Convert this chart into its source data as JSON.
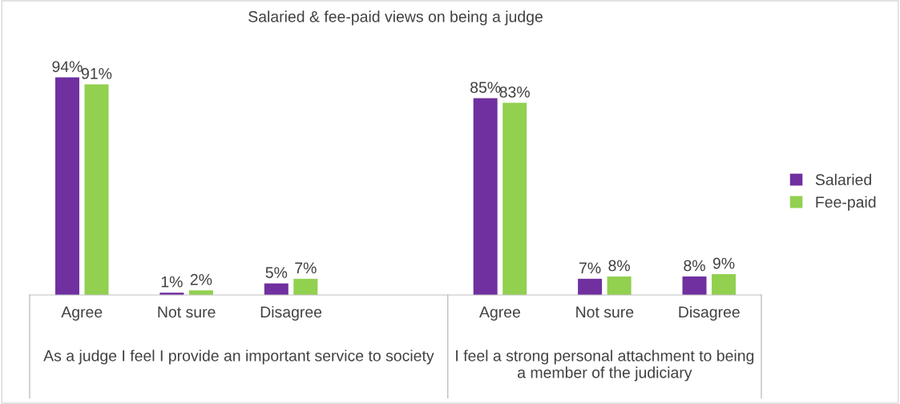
{
  "chart_data": {
    "type": "bar",
    "title": "Salaried & fee-paid views on being a judge",
    "categories": [
      "Agree",
      "Not sure",
      "Disagree",
      null,
      "Agree",
      "Not sure",
      "Disagree"
    ],
    "series": [
      {
        "name": "Salaried",
        "color": "#7030a0",
        "values": [
          94,
          1,
          5,
          null,
          85,
          7,
          8
        ],
        "value_labels": [
          "94%",
          "1%",
          "5%",
          null,
          "85%",
          "7%",
          "8%"
        ]
      },
      {
        "name": "Fee-paid",
        "color": "#92d050",
        "values": [
          91,
          2,
          7,
          null,
          83,
          8,
          9
        ],
        "value_labels": [
          "91%",
          "2%",
          "7%",
          null,
          "83%",
          "8%",
          "9%"
        ]
      }
    ],
    "annotations": [
      "As a judge I feel I provide an important service to society",
      "I feel a strong personal attachment to being a member of the judiciary"
    ],
    "tick_labels": "x",
    "grid": false,
    "legend": "right"
  }
}
